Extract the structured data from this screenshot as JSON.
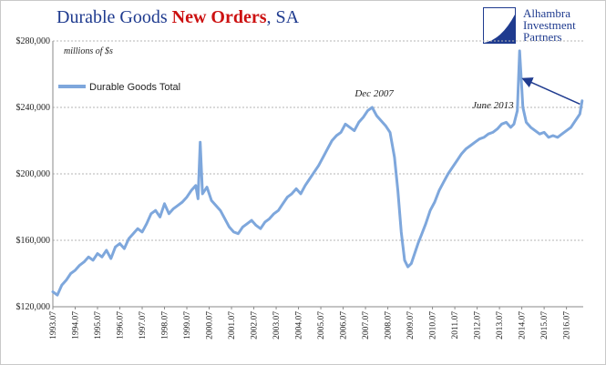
{
  "title": {
    "part1": "Durable Goods ",
    "part2": "New Orders",
    "part3": ", SA"
  },
  "logo": {
    "line1": "Alhambra",
    "line2": "Investment",
    "line3": "Partners"
  },
  "chart_data": {
    "type": "line",
    "units_label": "millions of $s",
    "ylim": [
      120000,
      280000
    ],
    "y_ticks": [
      120000,
      160000,
      200000,
      240000,
      280000
    ],
    "y_tick_labels": [
      "$120,000",
      "$160,000",
      "$200,000",
      "$240,000",
      "$280,000"
    ],
    "x_range": [
      1993.5,
      2017.25
    ],
    "x_tick_labels": [
      "1993.07",
      "1994.07",
      "1995.07",
      "1996.07",
      "1997.07",
      "1998.07",
      "1999.07",
      "2000.07",
      "2001.07",
      "2002.07",
      "2003.07",
      "2004.07",
      "2005.07",
      "2006.07",
      "2007.07",
      "2008.07",
      "2009.07",
      "2010.07",
      "2011.07",
      "2012.07",
      "2013.07",
      "2014.07",
      "2015.07",
      "2016.07"
    ],
    "grid": "horizontal dashed",
    "legend_position": "top-left",
    "series": [
      {
        "name": "Durable Goods Total",
        "color": "#7ea7dc",
        "points": [
          [
            1993.5,
            129000
          ],
          [
            1993.7,
            127000
          ],
          [
            1993.9,
            133000
          ],
          [
            1994.1,
            136000
          ],
          [
            1994.3,
            140000
          ],
          [
            1994.5,
            142000
          ],
          [
            1994.7,
            145000
          ],
          [
            1994.9,
            147000
          ],
          [
            1995.1,
            150000
          ],
          [
            1995.3,
            148000
          ],
          [
            1995.5,
            152000
          ],
          [
            1995.7,
            150000
          ],
          [
            1995.9,
            154000
          ],
          [
            1996.1,
            149000
          ],
          [
            1996.3,
            156000
          ],
          [
            1996.5,
            158000
          ],
          [
            1996.7,
            155000
          ],
          [
            1996.9,
            161000
          ],
          [
            1997.1,
            164000
          ],
          [
            1997.3,
            167000
          ],
          [
            1997.5,
            165000
          ],
          [
            1997.7,
            170000
          ],
          [
            1997.9,
            176000
          ],
          [
            1998.1,
            178000
          ],
          [
            1998.3,
            174000
          ],
          [
            1998.5,
            182000
          ],
          [
            1998.7,
            176000
          ],
          [
            1998.9,
            179000
          ],
          [
            1999.1,
            181000
          ],
          [
            1999.3,
            183000
          ],
          [
            1999.5,
            186000
          ],
          [
            1999.7,
            190000
          ],
          [
            1999.9,
            193000
          ],
          [
            2000.0,
            185000
          ],
          [
            2000.1,
            219000
          ],
          [
            2000.2,
            188000
          ],
          [
            2000.4,
            192000
          ],
          [
            2000.6,
            184000
          ],
          [
            2000.8,
            181000
          ],
          [
            2001.0,
            178000
          ],
          [
            2001.2,
            173000
          ],
          [
            2001.4,
            168000
          ],
          [
            2001.6,
            165000
          ],
          [
            2001.8,
            164000
          ],
          [
            2002.0,
            168000
          ],
          [
            2002.2,
            170000
          ],
          [
            2002.4,
            172000
          ],
          [
            2002.6,
            169000
          ],
          [
            2002.8,
            167000
          ],
          [
            2003.0,
            171000
          ],
          [
            2003.2,
            173000
          ],
          [
            2003.4,
            176000
          ],
          [
            2003.6,
            178000
          ],
          [
            2003.8,
            182000
          ],
          [
            2004.0,
            186000
          ],
          [
            2004.2,
            188000
          ],
          [
            2004.4,
            191000
          ],
          [
            2004.6,
            188000
          ],
          [
            2004.8,
            193000
          ],
          [
            2005.0,
            197000
          ],
          [
            2005.2,
            201000
          ],
          [
            2005.4,
            205000
          ],
          [
            2005.6,
            210000
          ],
          [
            2005.8,
            215000
          ],
          [
            2006.0,
            220000
          ],
          [
            2006.2,
            223000
          ],
          [
            2006.4,
            225000
          ],
          [
            2006.6,
            230000
          ],
          [
            2006.8,
            228000
          ],
          [
            2007.0,
            226000
          ],
          [
            2007.2,
            231000
          ],
          [
            2007.4,
            234000
          ],
          [
            2007.6,
            238000
          ],
          [
            2007.8,
            240000
          ],
          [
            2008.0,
            235000
          ],
          [
            2008.2,
            232000
          ],
          [
            2008.4,
            229000
          ],
          [
            2008.6,
            225000
          ],
          [
            2008.8,
            210000
          ],
          [
            2008.95,
            190000
          ],
          [
            2009.1,
            165000
          ],
          [
            2009.25,
            148000
          ],
          [
            2009.4,
            144000
          ],
          [
            2009.55,
            146000
          ],
          [
            2009.7,
            152000
          ],
          [
            2009.85,
            158000
          ],
          [
            2010.0,
            163000
          ],
          [
            2010.2,
            170000
          ],
          [
            2010.4,
            178000
          ],
          [
            2010.6,
            183000
          ],
          [
            2010.8,
            190000
          ],
          [
            2011.0,
            195000
          ],
          [
            2011.2,
            200000
          ],
          [
            2011.4,
            204000
          ],
          [
            2011.6,
            208000
          ],
          [
            2011.8,
            212000
          ],
          [
            2012.0,
            215000
          ],
          [
            2012.2,
            217000
          ],
          [
            2012.4,
            219000
          ],
          [
            2012.6,
            221000
          ],
          [
            2012.8,
            222000
          ],
          [
            2013.0,
            224000
          ],
          [
            2013.2,
            225000
          ],
          [
            2013.4,
            227000
          ],
          [
            2013.6,
            230000
          ],
          [
            2013.8,
            231000
          ],
          [
            2014.0,
            228000
          ],
          [
            2014.15,
            230000
          ],
          [
            2014.3,
            238000
          ],
          [
            2014.4,
            274000
          ],
          [
            2014.55,
            240000
          ],
          [
            2014.7,
            231000
          ],
          [
            2014.9,
            228000
          ],
          [
            2015.1,
            226000
          ],
          [
            2015.3,
            224000
          ],
          [
            2015.5,
            225000
          ],
          [
            2015.7,
            222000
          ],
          [
            2015.9,
            223000
          ],
          [
            2016.1,
            222000
          ],
          [
            2016.3,
            224000
          ],
          [
            2016.5,
            226000
          ],
          [
            2016.7,
            228000
          ],
          [
            2016.9,
            232000
          ],
          [
            2017.1,
            236000
          ],
          [
            2017.2,
            244000
          ]
        ]
      }
    ],
    "annotations": [
      {
        "text": "Dec 2007",
        "x": 2007.92,
        "y": 239000
      },
      {
        "text": "June 2013",
        "x": 2013.42,
        "y": 235000
      }
    ],
    "arrow": {
      "from": [
        2017.1,
        242000
      ],
      "to": [
        2014.6,
        257000
      ]
    }
  }
}
